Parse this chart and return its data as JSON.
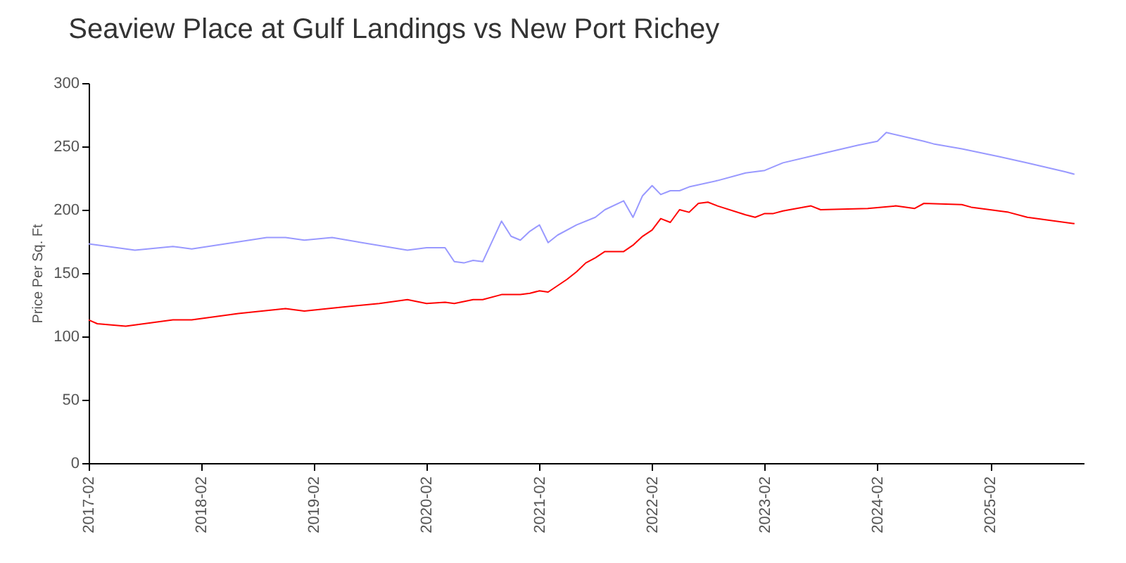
{
  "chart_data": {
    "type": "line",
    "title": "Seaview Place at Gulf Landings vs New Port Richey",
    "ylabel": "Price Per Sq. Ft",
    "grid": false,
    "legend": false,
    "marker": "none",
    "line_style": "solid",
    "xlim": [
      "2017-02",
      "2025-12"
    ],
    "xticks": [
      "2017-02",
      "2018-02",
      "2019-02",
      "2020-02",
      "2021-02",
      "2022-02",
      "2023-02",
      "2024-02",
      "2025-02"
    ],
    "ylim": [
      0,
      300
    ],
    "yticks": [
      0,
      50,
      100,
      150,
      200,
      250,
      300
    ],
    "series": [
      {
        "color": "#9999ff",
        "x": [
          "2017-02",
          "2017-07",
          "2017-11",
          "2018-01",
          "2018-09",
          "2018-11",
          "2019-01",
          "2019-04",
          "2019-12",
          "2020-02",
          "2020-04",
          "2020-05",
          "2020-06",
          "2020-07",
          "2020-08",
          "2020-10",
          "2020-11",
          "2020-12",
          "2021-01",
          "2021-02",
          "2021-03",
          "2021-04",
          "2021-06",
          "2021-08",
          "2021-09",
          "2021-11",
          "2021-12",
          "2022-01",
          "2022-02",
          "2022-03",
          "2022-04",
          "2022-05",
          "2022-06",
          "2022-09",
          "2022-12",
          "2023-02",
          "2023-04",
          "2023-08",
          "2023-12",
          "2024-02",
          "2024-03",
          "2024-07",
          "2024-08",
          "2024-11",
          "2025-03",
          "2025-06",
          "2025-10",
          "2025-11"
        ],
        "values": [
          173,
          168,
          171,
          169,
          178,
          178,
          176,
          178,
          168,
          170,
          170,
          159,
          158,
          160,
          159,
          191,
          179,
          176,
          183,
          188,
          174,
          180,
          188,
          194,
          200,
          207,
          194,
          211,
          219,
          212,
          215,
          215,
          218,
          223,
          229,
          231,
          237,
          244,
          251,
          254,
          261,
          254,
          252,
          248,
          242,
          237,
          230,
          228
        ]
      },
      {
        "color": "#ff0000",
        "x": [
          "2017-02",
          "2017-03",
          "2017-06",
          "2017-11",
          "2018-01",
          "2018-06",
          "2018-11",
          "2018-12",
          "2019-01",
          "2019-05",
          "2019-09",
          "2019-12",
          "2020-02",
          "2020-04",
          "2020-05",
          "2020-07",
          "2020-08",
          "2020-10",
          "2020-12",
          "2021-01",
          "2021-02",
          "2021-03",
          "2021-05",
          "2021-06",
          "2021-07",
          "2021-08",
          "2021-09",
          "2021-11",
          "2021-12",
          "2022-01",
          "2022-02",
          "2022-03",
          "2022-04",
          "2022-05",
          "2022-06",
          "2022-07",
          "2022-08",
          "2022-09",
          "2022-12",
          "2023-01",
          "2023-02",
          "2023-03",
          "2023-04",
          "2023-07",
          "2023-08",
          "2024-01",
          "2024-04",
          "2024-06",
          "2024-07",
          "2024-11",
          "2024-12",
          "2025-04",
          "2025-06",
          "2025-11"
        ],
        "values": [
          113,
          110,
          108,
          113,
          113,
          118,
          122,
          121,
          120,
          123,
          126,
          129,
          126,
          127,
          126,
          129,
          129,
          133,
          133,
          134,
          136,
          135,
          145,
          151,
          158,
          162,
          167,
          167,
          172,
          179,
          184,
          193,
          190,
          200,
          198,
          205,
          206,
          203,
          196,
          194,
          197,
          197,
          199,
          203,
          200,
          201,
          203,
          201,
          205,
          204,
          202,
          198,
          194,
          189
        ]
      }
    ]
  }
}
